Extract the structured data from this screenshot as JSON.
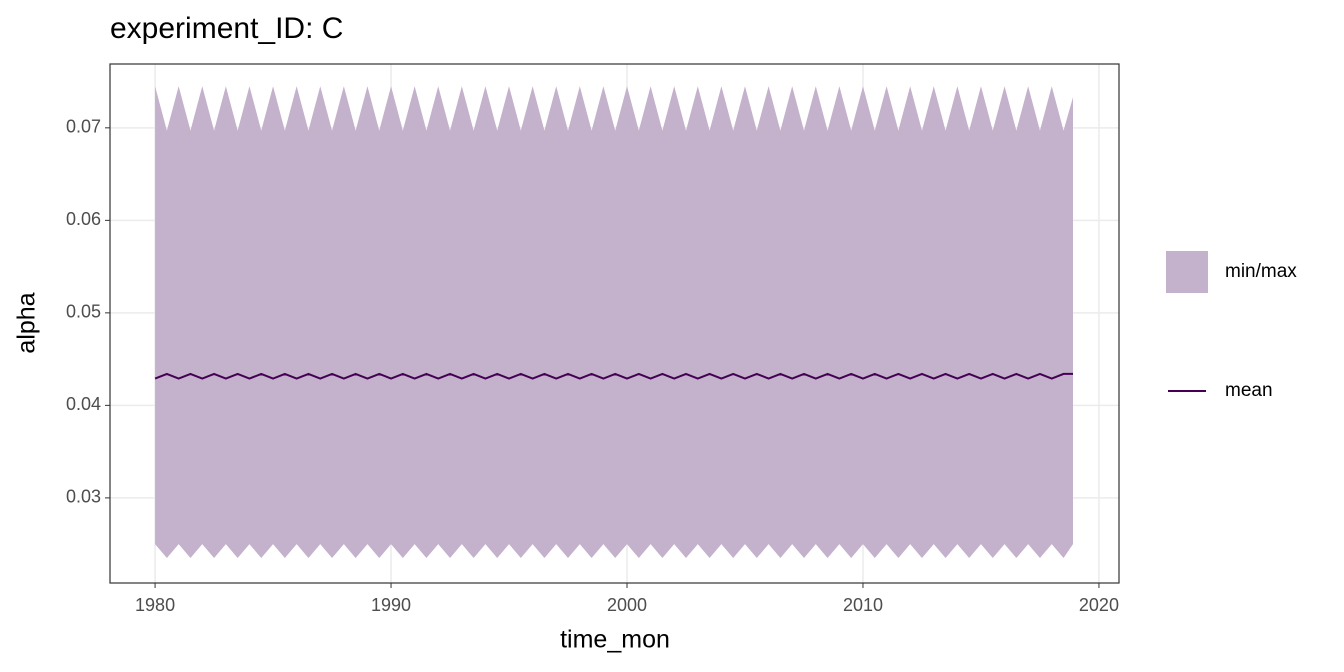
{
  "chart_data": {
    "type": "ribbon-line",
    "title": "experiment_ID: C",
    "x_label": "time_mon",
    "y_label": "alpha",
    "x": [
      1980,
      1980.5,
      1981,
      1981.5,
      1982,
      1982.5,
      1983,
      1983.5,
      1984,
      1984.5,
      1985,
      1985.5,
      1986,
      1986.5,
      1987,
      1987.5,
      1988,
      1988.5,
      1989,
      1989.5,
      1990,
      1990.5,
      1991,
      1991.5,
      1992,
      1992.5,
      1993,
      1993.5,
      1994,
      1994.5,
      1995,
      1995.5,
      1996,
      1996.5,
      1997,
      1997.5,
      1998,
      1998.5,
      1999,
      1999.5,
      2000,
      2000.5,
      2001,
      2001.5,
      2002,
      2002.5,
      2003,
      2003.5,
      2004,
      2004.5,
      2005,
      2005.5,
      2006,
      2006.5,
      2007,
      2007.5,
      2008,
      2008.5,
      2009,
      2009.5,
      2010,
      2010.5,
      2011,
      2011.5,
      2012,
      2012.5,
      2013,
      2013.5,
      2014,
      2014.5,
      2015,
      2015.5,
      2016,
      2016.5,
      2017,
      2017.5,
      2018,
      2018.5,
      2018.9
    ],
    "series": [
      {
        "name": "min/max",
        "color": "#c4b1cc",
        "max": [
          0.0745,
          0.0697,
          0.0745,
          0.0697,
          0.0745,
          0.0697,
          0.0745,
          0.0697,
          0.0745,
          0.0697,
          0.0745,
          0.0697,
          0.0745,
          0.0697,
          0.0745,
          0.0697,
          0.0745,
          0.0697,
          0.0745,
          0.0697,
          0.0745,
          0.0697,
          0.0745,
          0.0697,
          0.0745,
          0.0697,
          0.0745,
          0.0697,
          0.0745,
          0.0697,
          0.0745,
          0.0697,
          0.0745,
          0.0697,
          0.0745,
          0.0697,
          0.0745,
          0.0697,
          0.0745,
          0.0697,
          0.0745,
          0.0697,
          0.0745,
          0.0697,
          0.0745,
          0.0697,
          0.0745,
          0.0697,
          0.0745,
          0.0697,
          0.0745,
          0.0697,
          0.0745,
          0.0697,
          0.0745,
          0.0697,
          0.0745,
          0.0697,
          0.0745,
          0.0697,
          0.0745,
          0.0697,
          0.0745,
          0.0697,
          0.0745,
          0.0697,
          0.0745,
          0.0697,
          0.0745,
          0.0697,
          0.0745,
          0.0697,
          0.0745,
          0.0697,
          0.0745,
          0.0697,
          0.0745,
          0.0697,
          0.0733
        ],
        "min": [
          0.025,
          0.0235,
          0.025,
          0.0235,
          0.025,
          0.0235,
          0.025,
          0.0235,
          0.025,
          0.0235,
          0.025,
          0.0235,
          0.025,
          0.0235,
          0.025,
          0.0235,
          0.025,
          0.0235,
          0.025,
          0.0235,
          0.025,
          0.0235,
          0.025,
          0.0235,
          0.025,
          0.0235,
          0.025,
          0.0235,
          0.025,
          0.0235,
          0.025,
          0.0235,
          0.025,
          0.0235,
          0.025,
          0.0235,
          0.025,
          0.0235,
          0.025,
          0.0235,
          0.025,
          0.0235,
          0.025,
          0.0235,
          0.025,
          0.0235,
          0.025,
          0.0235,
          0.025,
          0.0235,
          0.025,
          0.0235,
          0.025,
          0.0235,
          0.025,
          0.0235,
          0.025,
          0.0235,
          0.025,
          0.0235,
          0.025,
          0.0235,
          0.025,
          0.0235,
          0.025,
          0.0235,
          0.025,
          0.0235,
          0.025,
          0.0235,
          0.025,
          0.0235,
          0.025,
          0.0235,
          0.025,
          0.0235,
          0.025,
          0.0235,
          0.025
        ]
      },
      {
        "name": "mean",
        "color": "#440154",
        "values": [
          0.0429,
          0.0434,
          0.0429,
          0.0434,
          0.0429,
          0.0434,
          0.0429,
          0.0434,
          0.0429,
          0.0434,
          0.0429,
          0.0434,
          0.0429,
          0.0434,
          0.0429,
          0.0434,
          0.0429,
          0.0434,
          0.0429,
          0.0434,
          0.0429,
          0.0434,
          0.0429,
          0.0434,
          0.0429,
          0.0434,
          0.0429,
          0.0434,
          0.0429,
          0.0434,
          0.0429,
          0.0434,
          0.0429,
          0.0434,
          0.0429,
          0.0434,
          0.0429,
          0.0434,
          0.0429,
          0.0434,
          0.0429,
          0.0434,
          0.0429,
          0.0434,
          0.0429,
          0.0434,
          0.0429,
          0.0434,
          0.0429,
          0.0434,
          0.0429,
          0.0434,
          0.0429,
          0.0434,
          0.0429,
          0.0434,
          0.0429,
          0.0434,
          0.0429,
          0.0434,
          0.0429,
          0.0434,
          0.0429,
          0.0434,
          0.0429,
          0.0434,
          0.0429,
          0.0434,
          0.0429,
          0.0434,
          0.0429,
          0.0434,
          0.0429,
          0.0434,
          0.0429,
          0.0434,
          0.0429,
          0.0434,
          0.0434
        ]
      }
    ],
    "xlim": [
      1978.09,
      2020.85
    ],
    "xticks": [
      1980,
      1990,
      2000,
      2010,
      2020
    ],
    "ylim": [
      0.0208,
      0.0769
    ],
    "yticks": [
      0.03,
      0.04,
      0.05,
      0.06,
      0.07
    ],
    "grid": true,
    "legend": "right"
  }
}
